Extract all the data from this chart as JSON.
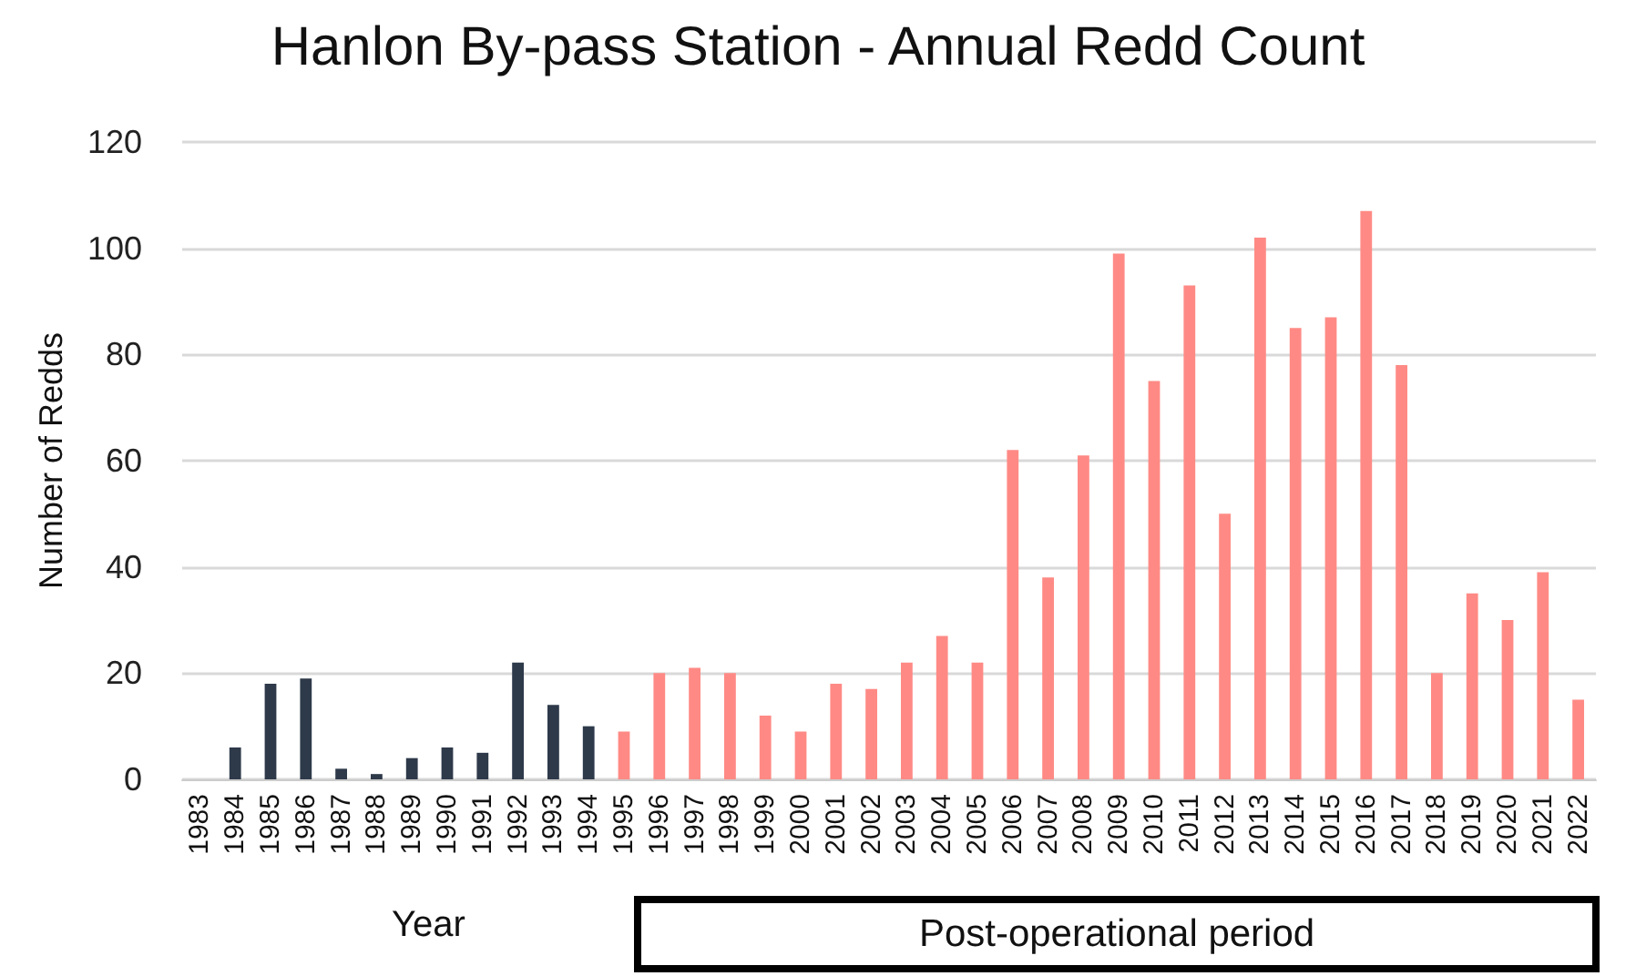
{
  "chart_data": {
    "type": "bar",
    "title": "Hanlon By-pass Station - Annual Redd Count",
    "xlabel": "Year",
    "ylabel": "Number of Redds",
    "categories": [
      "1983",
      "1984",
      "1985",
      "1986",
      "1987",
      "1988",
      "1989",
      "1990",
      "1991",
      "1992",
      "1993",
      "1994",
      "1995",
      "1996",
      "1997",
      "1998",
      "1999",
      "2000",
      "2001",
      "2002",
      "2003",
      "2004",
      "2005",
      "2006",
      "2007",
      "2008",
      "2009",
      "2010",
      "2011",
      "2012",
      "2013",
      "2014",
      "2015",
      "2016",
      "2017",
      "2018",
      "2019",
      "2020",
      "2021",
      "2022"
    ],
    "values": [
      0,
      6,
      18,
      19,
      2,
      1,
      4,
      6,
      5,
      22,
      14,
      10,
      9,
      20,
      21,
      20,
      12,
      9,
      18,
      17,
      22,
      27,
      22,
      62,
      38,
      61,
      99,
      75,
      93,
      50,
      102,
      85,
      87,
      107,
      78,
      20,
      35,
      30,
      39,
      15
    ],
    "colors": [
      "#2e3a4a",
      "#2e3a4a",
      "#2e3a4a",
      "#2e3a4a",
      "#2e3a4a",
      "#2e3a4a",
      "#2e3a4a",
      "#2e3a4a",
      "#2e3a4a",
      "#2e3a4a",
      "#2e3a4a",
      "#2e3a4a",
      "#ff8a85",
      "#ff8a85",
      "#ff8a85",
      "#ff8a85",
      "#ff8a85",
      "#ff8a85",
      "#ff8a85",
      "#ff8a85",
      "#ff8a85",
      "#ff8a85",
      "#ff8a85",
      "#ff8a85",
      "#ff8a85",
      "#ff8a85",
      "#ff8a85",
      "#ff8a85",
      "#ff8a85",
      "#ff8a85",
      "#ff8a85",
      "#ff8a85",
      "#ff8a85",
      "#ff8a85",
      "#ff8a85",
      "#ff8a85",
      "#ff8a85",
      "#ff8a85",
      "#ff8a85",
      "#ff8a85"
    ],
    "ylim": [
      0,
      120
    ],
    "yticks": [
      0,
      20,
      40,
      60,
      80,
      100,
      120
    ],
    "grid": "y",
    "annotations": [
      "Post-operational period"
    ]
  }
}
